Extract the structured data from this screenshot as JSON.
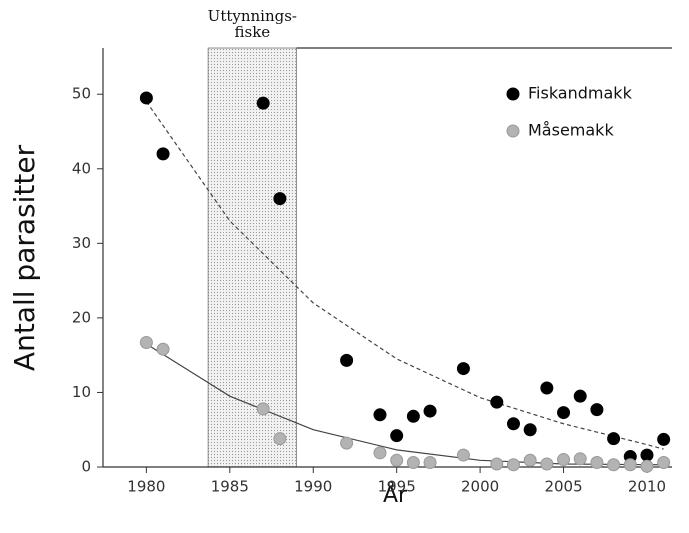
{
  "chart_data": {
    "type": "scatter",
    "xlabel": "År",
    "ylabel": "Antall parasitter",
    "xlim": [
      1977.4,
      2011.5
    ],
    "ylim": [
      0,
      56.2
    ],
    "xticks": [
      1980,
      1985,
      1990,
      1995,
      2000,
      2005,
      2010
    ],
    "yticks": [
      0,
      10,
      20,
      30,
      40,
      50
    ],
    "legend": "upper right",
    "shaded_region": {
      "xlim": [
        1983.7,
        1989
      ],
      "label": [
        "Uttynnings-",
        "fiske"
      ]
    },
    "series": [
      {
        "name": "Fiskandmakk",
        "color": "#000000",
        "x": [
          1980,
          1981,
          1987,
          1988,
          1992,
          1994,
          1995,
          1996,
          1997,
          1999,
          2001,
          2002,
          2003,
          2004,
          2005,
          2006,
          2007,
          2008,
          2009,
          2010,
          2011
        ],
        "values": [
          49.5,
          42,
          48.8,
          36,
          14.3,
          7,
          4.2,
          6.8,
          7.5,
          13.2,
          8.7,
          5.8,
          5,
          10.6,
          7.3,
          9.5,
          7.7,
          3.8,
          1.4,
          1.6,
          3.7
        ],
        "trend": {
          "style": "dashed",
          "x": [
            1980,
            1985,
            1990,
            1995,
            2000,
            2005,
            2010,
            2011
          ],
          "values": [
            49,
            33,
            22,
            14.5,
            9.3,
            5.8,
            3,
            2.4
          ]
        }
      },
      {
        "name": "Måsemakk",
        "color": "#b3b3b3",
        "x": [
          1980,
          1981,
          1987,
          1988,
          1992,
          1994,
          1995,
          1996,
          1997,
          1999,
          2001,
          2002,
          2003,
          2004,
          2005,
          2006,
          2007,
          2008,
          2009,
          2010,
          2011
        ],
        "values": [
          16.7,
          15.8,
          7.8,
          3.8,
          3.2,
          1.9,
          0.9,
          0.6,
          0.6,
          1.6,
          0.4,
          0.3,
          0.9,
          0.4,
          1,
          1.1,
          0.6,
          0.3,
          0.3,
          0.1,
          0.6
        ],
        "trend": {
          "style": "solid",
          "x": [
            1980,
            1985,
            1990,
            1995,
            2000,
            2005,
            2011
          ],
          "values": [
            16.5,
            9.5,
            5,
            2.3,
            0.9,
            0.4,
            0.3
          ]
        }
      }
    ]
  }
}
